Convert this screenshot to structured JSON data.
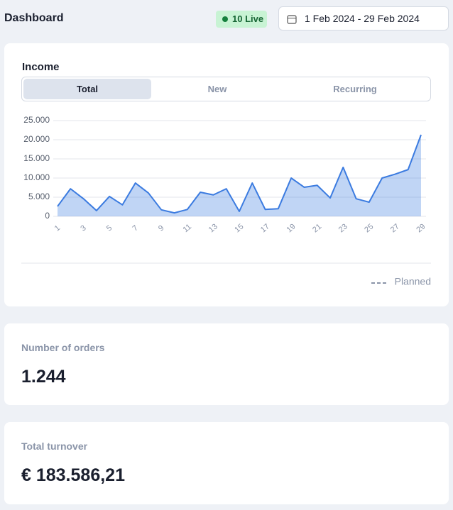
{
  "header": {
    "title": "Dashboard",
    "live": "10 Live",
    "date_range": "1 Feb 2024 - 29 Feb 2024"
  },
  "tabs": [
    "Total",
    "New",
    "Recurring"
  ],
  "active_tab": 0,
  "chart_data": {
    "type": "area",
    "title": "Income",
    "x": [
      1,
      2,
      3,
      4,
      5,
      6,
      7,
      8,
      9,
      10,
      11,
      12,
      13,
      14,
      15,
      16,
      17,
      18,
      19,
      20,
      21,
      22,
      23,
      24,
      25,
      26,
      27,
      28,
      29
    ],
    "values": [
      2600,
      7200,
      4600,
      1500,
      5200,
      3000,
      8700,
      6100,
      1700,
      900,
      1800,
      6300,
      5600,
      7200,
      1300,
      8700,
      1800,
      2000,
      10000,
      7600,
      8100,
      4800,
      12800,
      4600,
      3700,
      10000,
      11000,
      12200,
      21300
    ],
    "color": "#3b7be0",
    "xlim": [
      1,
      29
    ],
    "xticks": [
      1,
      3,
      5,
      7,
      9,
      11,
      13,
      15,
      17,
      19,
      21,
      23,
      25,
      27,
      29
    ],
    "ylim": [
      0,
      25000
    ],
    "yticks": [
      0,
      {
        "value": 5000,
        "label": "5.000"
      },
      {
        "value": 10000,
        "label": "10.000"
      },
      {
        "value": 15000,
        "label": "15.000"
      },
      {
        "value": 20000,
        "label": "20.000"
      },
      {
        "value": 25000,
        "label": "25.000"
      }
    ],
    "grid": true,
    "legend": "Planned"
  },
  "cards": [
    {
      "label": "Number of orders",
      "value": "1.244"
    },
    {
      "label": "Total turnover",
      "value": "€ 183.586,21"
    }
  ]
}
